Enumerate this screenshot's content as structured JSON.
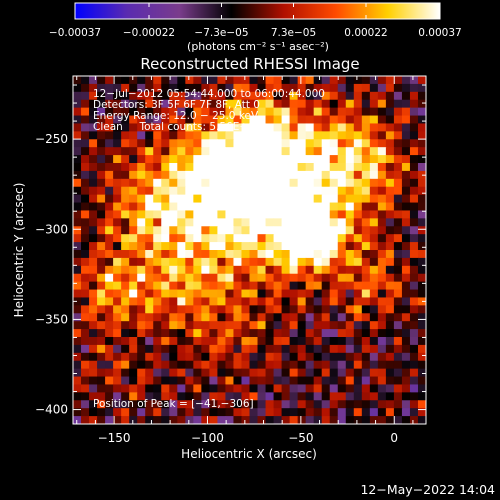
{
  "chart_data": {
    "type": "heatmap",
    "title": "Reconstructed RHESSI Image",
    "xlabel": "Heliocentric X (arcsec)",
    "ylabel": "Heliocentric Y (arcsec)",
    "xlim": [
      -172,
      17
    ],
    "ylim": [
      -408,
      -215
    ],
    "xticks": [
      -150,
      -100,
      -50,
      0
    ],
    "xtick_labels": [
      "−150",
      "−100",
      "−50",
      "0"
    ],
    "yticks": [
      -250,
      -300,
      -350,
      -400
    ],
    "ytick_labels": [
      "−250",
      "−300",
      "−350",
      "−400"
    ],
    "colorbar": {
      "min": -0.00037,
      "max": 0.00037,
      "ticks": [
        -0.00037,
        -0.00022,
        -7.3e-05,
        7.3e-05,
        0.00022,
        0.00037
      ],
      "tick_labels": [
        "−0.00037",
        "−0.00022",
        "−7.3e−05",
        "7.3e−05",
        "0.00022",
        "0.00037"
      ],
      "units_line": "(photons cm⁻² s⁻¹ asec⁻²)",
      "colors": [
        "#0000ff",
        "#5a2bb0",
        "#7a3c8c",
        "#000000",
        "#b01000",
        "#ff4a00",
        "#ffd000",
        "#ffffff"
      ]
    },
    "annotations": [
      "12−Jul−2012 05:54:44.000 to 06:00:44.000",
      "Detectors: 3F 5F 6F 7F 8F, Att 0",
      "Energy Range: 12.0 − 25.0 keV",
      "Clean     Total counts: 5.56E+03"
    ],
    "peak_label": "Position of Peak = [−41,−306]",
    "peak": [
      -41,
      -306
    ],
    "grid": false
  },
  "footer": {
    "timestamp": "12−May−2022 14:04"
  }
}
